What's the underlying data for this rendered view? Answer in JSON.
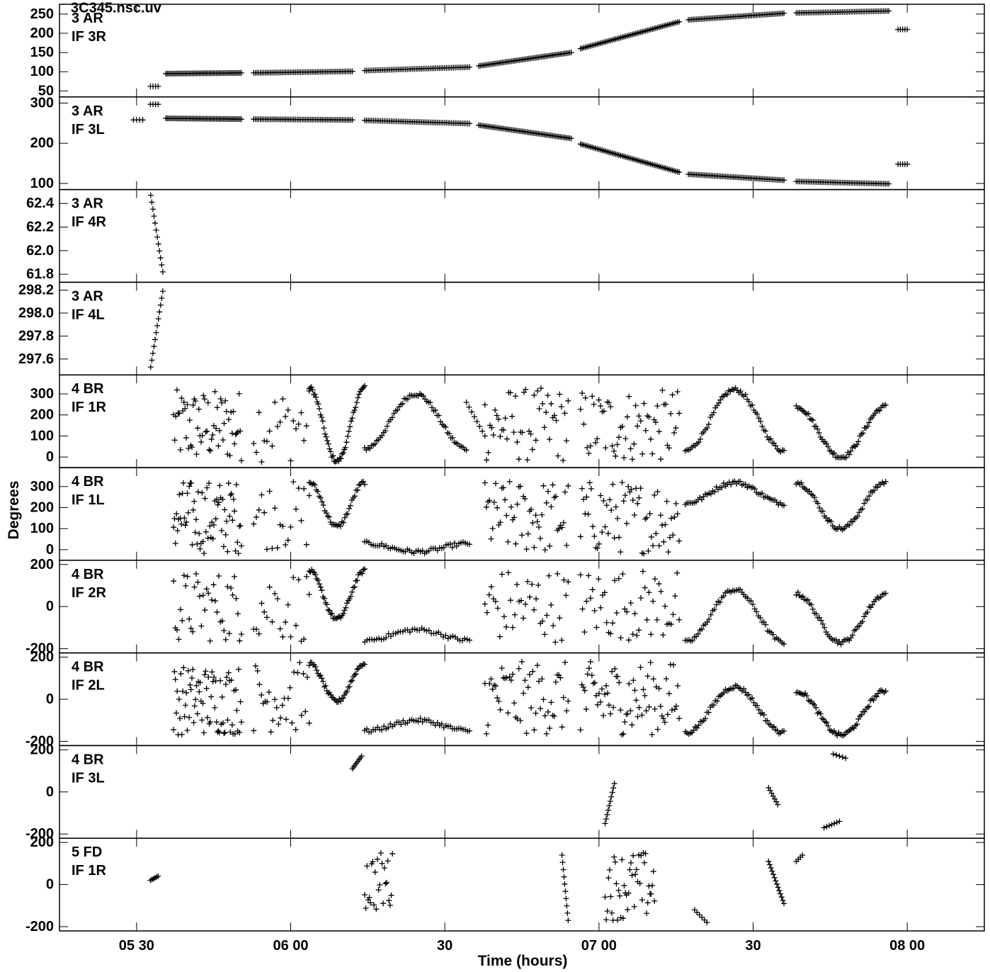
{
  "header": {
    "title": "3C345.nsc.uv"
  },
  "chart_data": {
    "type": "scatter",
    "marker": "+",
    "color": "#000000",
    "xlabel": "Time (hours)",
    "ylabel": "Degrees",
    "xlim": [
      5.25,
      8.25
    ],
    "x_ticks": [
      {
        "value": 5.5,
        "label": "05 30"
      },
      {
        "value": 6.0,
        "label": "06 00"
      },
      {
        "value": 6.5,
        "label": "30"
      },
      {
        "value": 7.0,
        "label": "07 00"
      },
      {
        "value": 7.5,
        "label": "30"
      },
      {
        "value": 8.0,
        "label": "08 00"
      }
    ],
    "panels": [
      {
        "label1": "3 AR",
        "label2": "IF 3R",
        "ylim": [
          40,
          270
        ],
        "ticks": [
          {
            "v": 50,
            "label": "50"
          },
          {
            "v": 100,
            "label": "100"
          },
          {
            "v": 150,
            "label": "150"
          },
          {
            "v": 200,
            "label": "200"
          },
          {
            "v": 250,
            "label": "250"
          }
        ],
        "segments": [
          {
            "kind": "line",
            "t0": 5.545,
            "t1": 5.57,
            "v0": 62,
            "v1": 62,
            "n": 4
          },
          {
            "kind": "line",
            "t0": 5.595,
            "t1": 5.84,
            "v0": 95,
            "v1": 97,
            "n": 55
          },
          {
            "kind": "line",
            "t0": 5.88,
            "t1": 6.2,
            "v0": 97,
            "v1": 101,
            "n": 60
          },
          {
            "kind": "line",
            "t0": 6.24,
            "t1": 6.58,
            "v0": 103,
            "v1": 112,
            "n": 60
          },
          {
            "kind": "line",
            "t0": 6.61,
            "t1": 6.91,
            "v0": 115,
            "v1": 150,
            "n": 60
          },
          {
            "kind": "line",
            "t0": 6.94,
            "t1": 7.26,
            "v0": 160,
            "v1": 230,
            "n": 60
          },
          {
            "kind": "line",
            "t0": 7.29,
            "t1": 7.6,
            "v0": 235,
            "v1": 252,
            "n": 60
          },
          {
            "kind": "line",
            "t0": 7.64,
            "t1": 7.94,
            "v0": 253,
            "v1": 258,
            "n": 55
          },
          {
            "kind": "line",
            "t0": 7.97,
            "t1": 8.0,
            "v0": 210,
            "v1": 210,
            "n": 5
          }
        ]
      },
      {
        "label1": "3 AR",
        "label2": "IF 3L",
        "ylim": [
          90,
          310
        ],
        "ticks": [
          {
            "v": 100,
            "label": "100"
          },
          {
            "v": 200,
            "label": "200"
          },
          {
            "v": 300,
            "label": "300"
          }
        ],
        "segments": [
          {
            "kind": "line",
            "t0": 5.49,
            "t1": 5.52,
            "v0": 258,
            "v1": 258,
            "n": 4
          },
          {
            "kind": "line",
            "t0": 5.545,
            "t1": 5.57,
            "v0": 297,
            "v1": 297,
            "n": 4
          },
          {
            "kind": "line",
            "t0": 5.595,
            "t1": 5.84,
            "v0": 262,
            "v1": 260,
            "n": 55
          },
          {
            "kind": "line",
            "t0": 5.88,
            "t1": 6.2,
            "v0": 260,
            "v1": 258,
            "n": 60
          },
          {
            "kind": "line",
            "t0": 6.24,
            "t1": 6.58,
            "v0": 257,
            "v1": 249,
            "n": 60
          },
          {
            "kind": "line",
            "t0": 6.61,
            "t1": 6.91,
            "v0": 245,
            "v1": 212,
            "n": 60
          },
          {
            "kind": "line",
            "t0": 6.94,
            "t1": 7.26,
            "v0": 198,
            "v1": 128,
            "n": 60
          },
          {
            "kind": "line",
            "t0": 7.29,
            "t1": 7.6,
            "v0": 123,
            "v1": 108,
            "n": 60
          },
          {
            "kind": "line",
            "t0": 7.64,
            "t1": 7.94,
            "v0": 105,
            "v1": 99,
            "n": 55
          },
          {
            "kind": "line",
            "t0": 7.97,
            "t1": 8.0,
            "v0": 148,
            "v1": 148,
            "n": 5
          }
        ]
      },
      {
        "label1": "3 AR",
        "label2": "IF 4R",
        "ylim": [
          61.75,
          62.5
        ],
        "ticks": [
          {
            "v": 61.8,
            "label": "61.8"
          },
          {
            "v": 62.0,
            "label": "62.0"
          },
          {
            "v": 62.2,
            "label": "62.2"
          },
          {
            "v": 62.4,
            "label": "62.4"
          }
        ],
        "segments": [
          {
            "kind": "line",
            "t0": 5.546,
            "t1": 5.585,
            "v0": 62.47,
            "v1": 61.82,
            "n": 12
          }
        ]
      },
      {
        "label1": "3 AR",
        "label2": "IF 4L",
        "ylim": [
          297.48,
          298.25
        ],
        "ticks": [
          {
            "v": 297.6,
            "label": "297.6"
          },
          {
            "v": 297.8,
            "label": "297.8"
          },
          {
            "v": 298.0,
            "label": "298.0"
          },
          {
            "v": 298.2,
            "label": "298.2"
          }
        ],
        "segments": [
          {
            "kind": "line",
            "t0": 5.546,
            "t1": 5.585,
            "v0": 297.53,
            "v1": 298.19,
            "n": 12
          }
        ]
      },
      {
        "label1": "4 BR",
        "label2": "IF 1R",
        "ylim": [
          -40,
          380
        ],
        "ticks": [
          {
            "v": 0,
            "label": "0"
          },
          {
            "v": 100,
            "label": "100"
          },
          {
            "v": 200,
            "label": "200"
          },
          {
            "v": 300,
            "label": "300"
          }
        ],
        "segments": [
          {
            "kind": "rand",
            "t0": 5.62,
            "t1": 5.84,
            "lo": -25,
            "hi": 320,
            "n": 60
          },
          {
            "kind": "rand",
            "t0": 5.88,
            "t1": 6.06,
            "lo": -25,
            "hi": 330,
            "n": 22
          },
          {
            "kind": "wave",
            "t0": 6.06,
            "t1": 6.24,
            "a": 330,
            "b": -20,
            "n": 50
          },
          {
            "kind": "wave",
            "t0": 6.24,
            "t1": 6.57,
            "a": 40,
            "b": 300,
            "n": 60
          },
          {
            "kind": "line",
            "t0": 6.57,
            "t1": 6.63,
            "v0": 260,
            "v1": 100,
            "n": 8
          },
          {
            "kind": "rand",
            "t0": 6.63,
            "t1": 6.9,
            "lo": -25,
            "hi": 330,
            "n": 50
          },
          {
            "kind": "rand",
            "t0": 6.94,
            "t1": 7.26,
            "lo": -25,
            "hi": 320,
            "n": 60
          },
          {
            "kind": "wave",
            "t0": 7.28,
            "t1": 7.6,
            "a": 30,
            "b": 320,
            "n": 60
          },
          {
            "kind": "wave",
            "t0": 7.64,
            "t1": 7.93,
            "a": 240,
            "b": 0,
            "n": 60
          }
        ]
      },
      {
        "label1": "4 BR",
        "label2": "IF 1L",
        "ylim": [
          -40,
          380
        ],
        "ticks": [
          {
            "v": 0,
            "label": "0"
          },
          {
            "v": 100,
            "label": "100"
          },
          {
            "v": 200,
            "label": "200"
          },
          {
            "v": 300,
            "label": "300"
          }
        ],
        "segments": [
          {
            "kind": "rand",
            "t0": 5.62,
            "t1": 5.84,
            "lo": -20,
            "hi": 330,
            "n": 70
          },
          {
            "kind": "rand",
            "t0": 5.88,
            "t1": 6.06,
            "lo": 0,
            "hi": 330,
            "n": 22
          },
          {
            "kind": "wave",
            "t0": 6.06,
            "t1": 6.24,
            "a": 320,
            "b": 110,
            "n": 40
          },
          {
            "kind": "wave",
            "t0": 6.24,
            "t1": 6.58,
            "a": 30,
            "b": -10,
            "n": 50
          },
          {
            "kind": "rand",
            "t0": 6.63,
            "t1": 6.9,
            "lo": -20,
            "hi": 330,
            "n": 55
          },
          {
            "kind": "rand",
            "t0": 6.94,
            "t1": 7.26,
            "lo": -20,
            "hi": 330,
            "n": 65
          },
          {
            "kind": "wave",
            "t0": 7.28,
            "t1": 7.6,
            "a": 220,
            "b": 320,
            "n": 55
          },
          {
            "kind": "wave",
            "t0": 7.64,
            "t1": 7.93,
            "a": 320,
            "b": 100,
            "n": 55
          }
        ]
      },
      {
        "label1": "4 BR",
        "label2": "IF 2R",
        "ylim": [
          -210,
          210
        ],
        "ticks": [
          {
            "v": -200,
            "label": "-200"
          },
          {
            "v": 0,
            "label": "0"
          },
          {
            "v": 200,
            "label": "200"
          }
        ],
        "segments": [
          {
            "kind": "rand",
            "t0": 5.62,
            "t1": 5.84,
            "lo": -170,
            "hi": 170,
            "n": 40
          },
          {
            "kind": "rand",
            "t0": 5.88,
            "t1": 6.06,
            "lo": -170,
            "hi": 180,
            "n": 22
          },
          {
            "kind": "wave",
            "t0": 6.06,
            "t1": 6.24,
            "a": 170,
            "b": -60,
            "n": 45
          },
          {
            "kind": "wave",
            "t0": 6.24,
            "t1": 6.58,
            "a": -160,
            "b": -110,
            "n": 45
          },
          {
            "kind": "rand",
            "t0": 6.63,
            "t1": 6.9,
            "lo": -170,
            "hi": 180,
            "n": 40
          },
          {
            "kind": "rand",
            "t0": 6.94,
            "t1": 7.26,
            "lo": -160,
            "hi": 180,
            "n": 50
          },
          {
            "kind": "wave",
            "t0": 7.28,
            "t1": 7.6,
            "a": -170,
            "b": 80,
            "n": 55
          },
          {
            "kind": "wave",
            "t0": 7.64,
            "t1": 7.93,
            "a": 60,
            "b": -170,
            "n": 55
          }
        ]
      },
      {
        "label1": "4 BR",
        "label2": "IF 2L",
        "ylim": [
          -210,
          210
        ],
        "ticks": [
          {
            "v": -200,
            "label": "-200"
          },
          {
            "v": 0,
            "label": "0"
          },
          {
            "v": 200,
            "label": "200"
          }
        ],
        "segments": [
          {
            "kind": "rand",
            "t0": 5.62,
            "t1": 5.84,
            "lo": -170,
            "hi": 160,
            "n": 75
          },
          {
            "kind": "rand",
            "t0": 5.88,
            "t1": 6.06,
            "lo": -160,
            "hi": 180,
            "n": 30
          },
          {
            "kind": "wave",
            "t0": 6.06,
            "t1": 6.24,
            "a": 170,
            "b": -10,
            "n": 45
          },
          {
            "kind": "wave",
            "t0": 6.24,
            "t1": 6.58,
            "a": -150,
            "b": -100,
            "n": 50
          },
          {
            "kind": "rand",
            "t0": 6.63,
            "t1": 6.9,
            "lo": -170,
            "hi": 180,
            "n": 55
          },
          {
            "kind": "rand",
            "t0": 6.94,
            "t1": 7.26,
            "lo": -170,
            "hi": 180,
            "n": 70
          },
          {
            "kind": "wave",
            "t0": 7.28,
            "t1": 7.6,
            "a": -160,
            "b": 60,
            "n": 60
          },
          {
            "kind": "wave",
            "t0": 7.64,
            "t1": 7.93,
            "a": 40,
            "b": -170,
            "n": 60
          }
        ]
      },
      {
        "label1": "4 BR",
        "label2": "IF 3L",
        "ylim": [
          -210,
          210
        ],
        "ticks": [
          {
            "v": -200,
            "label": "-200"
          },
          {
            "v": 0,
            "label": "0"
          },
          {
            "v": 200,
            "label": "200"
          }
        ],
        "segments": [
          {
            "kind": "line",
            "t0": 6.2,
            "t1": 6.23,
            "v0": 110,
            "v1": 170,
            "n": 8
          },
          {
            "kind": "line",
            "t0": 7.02,
            "t1": 7.05,
            "v0": -150,
            "v1": 40,
            "n": 10
          },
          {
            "kind": "line",
            "t0": 7.55,
            "t1": 7.58,
            "v0": 20,
            "v1": -60,
            "n": 7
          },
          {
            "kind": "line",
            "t0": 7.73,
            "t1": 7.78,
            "v0": -170,
            "v1": -140,
            "n": 7
          },
          {
            "kind": "line",
            "t0": 7.76,
            "t1": 7.8,
            "v0": 180,
            "v1": 160,
            "n": 5
          }
        ]
      },
      {
        "label1": "5 FD",
        "label2": "IF 1R",
        "ylim": [
          -210,
          210
        ],
        "ticks": [
          {
            "v": -200,
            "label": "-200"
          },
          {
            "v": 0,
            "label": "0"
          },
          {
            "v": 200,
            "label": "200"
          }
        ],
        "segments": [
          {
            "kind": "line",
            "t0": 5.545,
            "t1": 5.57,
            "v0": 20,
            "v1": 40,
            "n": 6
          },
          {
            "kind": "rand",
            "t0": 6.24,
            "t1": 6.33,
            "lo": -130,
            "hi": 160,
            "n": 25
          },
          {
            "kind": "line",
            "t0": 6.88,
            "t1": 6.9,
            "v0": 140,
            "v1": -170,
            "n": 10
          },
          {
            "kind": "rand",
            "t0": 7.02,
            "t1": 7.18,
            "lo": -170,
            "hi": 160,
            "n": 45
          },
          {
            "kind": "line",
            "t0": 7.31,
            "t1": 7.35,
            "v0": -120,
            "v1": -180,
            "n": 6
          },
          {
            "kind": "line",
            "t0": 7.55,
            "t1": 7.6,
            "v0": 110,
            "v1": -90,
            "n": 14
          },
          {
            "kind": "line",
            "t0": 7.64,
            "t1": 7.66,
            "v0": 110,
            "v1": 140,
            "n": 4
          }
        ]
      }
    ]
  }
}
